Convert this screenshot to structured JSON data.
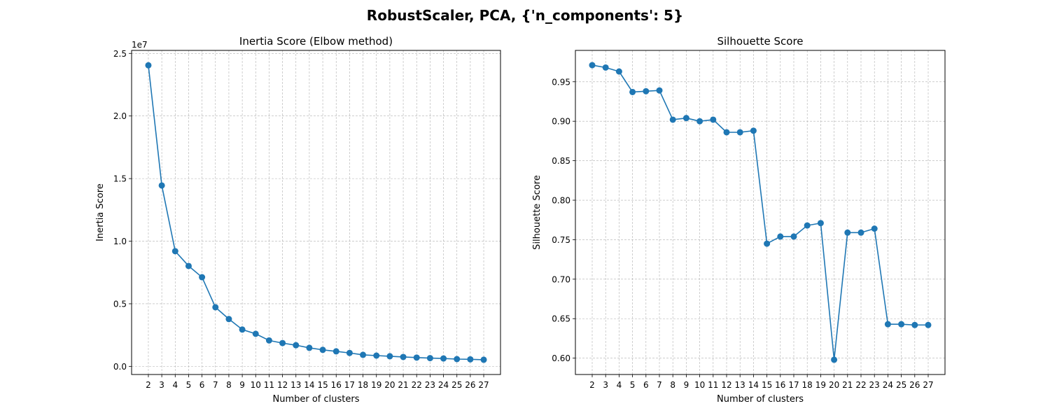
{
  "figure": {
    "suptitle": "RobustScaler, PCA, {'n_components': 5}",
    "line_color": "#1f77b4",
    "grid_color": "#b0b0b0"
  },
  "chart_data": [
    {
      "type": "line",
      "title": "Inertia Score (Elbow method)",
      "xlabel": "Number of clusters",
      "ylabel": "Inertia Score",
      "offset_text": "1e7",
      "marker": "circle",
      "grid": true,
      "x": [
        2,
        3,
        4,
        5,
        6,
        7,
        8,
        9,
        10,
        11,
        12,
        13,
        14,
        15,
        16,
        17,
        18,
        19,
        20,
        21,
        22,
        23,
        24,
        25,
        26,
        27
      ],
      "x_ticks": [
        "2",
        "3",
        "4",
        "5",
        "6",
        "7",
        "8",
        "9",
        "10",
        "11",
        "12",
        "13",
        "14",
        "15",
        "16",
        "17",
        "18",
        "19",
        "20",
        "21",
        "22",
        "23",
        "24",
        "25",
        "26",
        "27"
      ],
      "xlim": [
        0.75,
        28.25
      ],
      "values": [
        24050000,
        14450000,
        9200000,
        8020000,
        7120000,
        4720000,
        3780000,
        2940000,
        2600000,
        2070000,
        1860000,
        1690000,
        1480000,
        1320000,
        1200000,
        1070000,
        920000,
        860000,
        810000,
        750000,
        700000,
        660000,
        630000,
        580000,
        560000,
        530000
      ],
      "y_ticks": [
        {
          "value": 0,
          "label": "0.0"
        },
        {
          "value": 5000000,
          "label": "0.5"
        },
        {
          "value": 10000000,
          "label": "1.0"
        },
        {
          "value": 15000000,
          "label": "1.5"
        },
        {
          "value": 20000000,
          "label": "2.0"
        },
        {
          "value": 25000000,
          "label": "2.5"
        }
      ],
      "ylim": [
        -650000,
        25240000
      ]
    },
    {
      "type": "line",
      "title": "Silhouette Score",
      "xlabel": "Number of clusters",
      "ylabel": "Silhouette Score",
      "offset_text": "",
      "marker": "circle",
      "grid": true,
      "x": [
        2,
        3,
        4,
        5,
        6,
        7,
        8,
        9,
        10,
        11,
        12,
        13,
        14,
        15,
        16,
        17,
        18,
        19,
        20,
        21,
        22,
        23,
        24,
        25,
        26,
        27
      ],
      "x_ticks": [
        "2",
        "3",
        "4",
        "5",
        "6",
        "7",
        "8",
        "9",
        "10",
        "11",
        "12",
        "13",
        "14",
        "15",
        "16",
        "17",
        "18",
        "19",
        "20",
        "21",
        "22",
        "23",
        "24",
        "25",
        "26",
        "27"
      ],
      "xlim": [
        0.75,
        28.25
      ],
      "values": [
        0.971,
        0.968,
        0.963,
        0.937,
        0.938,
        0.939,
        0.902,
        0.904,
        0.9,
        0.902,
        0.886,
        0.886,
        0.888,
        0.745,
        0.754,
        0.754,
        0.768,
        0.771,
        0.598,
        0.759,
        0.759,
        0.764,
        0.643,
        0.643,
        0.642,
        0.642
      ],
      "y_ticks": [
        {
          "value": 0.6,
          "label": "0.60"
        },
        {
          "value": 0.65,
          "label": "0.65"
        },
        {
          "value": 0.7,
          "label": "0.70"
        },
        {
          "value": 0.75,
          "label": "0.75"
        },
        {
          "value": 0.8,
          "label": "0.80"
        },
        {
          "value": 0.85,
          "label": "0.85"
        },
        {
          "value": 0.9,
          "label": "0.90"
        },
        {
          "value": 0.95,
          "label": "0.95"
        }
      ],
      "ylim": [
        0.5793,
        0.9897
      ]
    }
  ]
}
